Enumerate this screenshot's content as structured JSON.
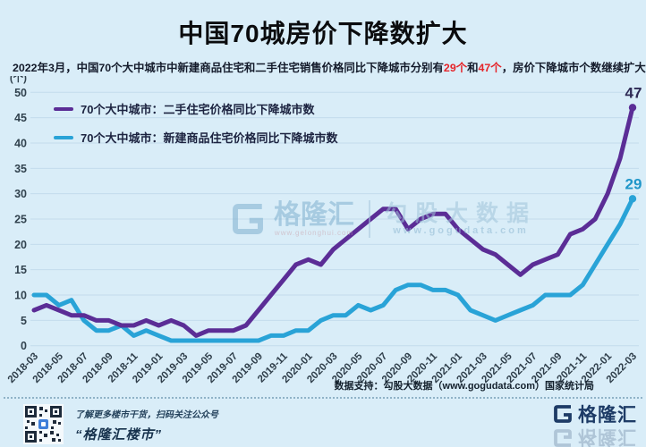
{
  "title": "中国70城房价下降数扩大",
  "subtitle": {
    "part1": "2022年3月，中国70个大中城市中新建商品住宅和二手住宅销售价格同比下降城市分别有",
    "highlight1": "29个",
    "part2": "和",
    "highlight2": "47个",
    "part3": "，房价下降城市个数继续扩大。"
  },
  "colors": {
    "background": "#d9edf8",
    "grid": "#c3dcec",
    "axis_text": "#31424e",
    "secondhand_line": "#5b2d96",
    "newhome_line": "#29a3d7",
    "highlight_red": "#e5252a",
    "brand_navy": "#1d3b66"
  },
  "chart_data": {
    "type": "line",
    "title": "中国70城房价下降数扩大",
    "unit_label": "(个)",
    "xlabel": "",
    "ylabel": "(个)",
    "ylim": [
      0,
      50
    ],
    "y_ticks": [
      0,
      5,
      10,
      15,
      20,
      25,
      30,
      35,
      40,
      45,
      50
    ],
    "grid": true,
    "legend_position": "top-left",
    "x": [
      "2018-03",
      "2018-04",
      "2018-05",
      "2018-06",
      "2018-07",
      "2018-08",
      "2018-09",
      "2018-10",
      "2018-11",
      "2018-12",
      "2019-01",
      "2019-02",
      "2019-03",
      "2019-04",
      "2019-05",
      "2019-06",
      "2019-07",
      "2019-08",
      "2019-09",
      "2019-10",
      "2019-11",
      "2019-12",
      "2020-01",
      "2020-02",
      "2020-03",
      "2020-04",
      "2020-05",
      "2020-06",
      "2020-07",
      "2020-08",
      "2020-09",
      "2020-10",
      "2020-11",
      "2020-12",
      "2021-01",
      "2021-02",
      "2021-03",
      "2021-04",
      "2021-05",
      "2021-06",
      "2021-07",
      "2021-08",
      "2021-09",
      "2021-10",
      "2021-11",
      "2021-12",
      "2022-01",
      "2022-02",
      "2022-03"
    ],
    "x_tick_labels": [
      "2018-03",
      "2018-05",
      "2018-07",
      "2018-09",
      "2018-11",
      "2019-01",
      "2019-03",
      "2019-05",
      "2019-07",
      "2019-09",
      "2019-11",
      "2020-01",
      "2020-03",
      "2020-05",
      "2020-07",
      "2020-09",
      "2020-11",
      "2021-01",
      "2021-03",
      "2021-05",
      "2021-07",
      "2021-09",
      "2021-11",
      "2022-01",
      "2022-03"
    ],
    "series": [
      {
        "name": "70个大中城市：新建商品住宅价格同比下降城市数",
        "color": "#29a3d7",
        "end_label": "29",
        "end_label_color": "#1f96c9",
        "values": [
          10,
          10,
          8,
          9,
          5,
          3,
          3,
          4,
          2,
          3,
          2,
          1,
          1,
          1,
          1,
          1,
          1,
          1,
          1,
          2,
          2,
          3,
          3,
          5,
          6,
          6,
          8,
          7,
          8,
          11,
          12,
          12,
          11,
          11,
          10,
          7,
          6,
          5,
          6,
          7,
          8,
          10,
          10,
          10,
          12,
          16,
          20,
          24,
          29
        ]
      },
      {
        "name": "70个大中城市：二手住宅价格同比下降城市数",
        "color": "#5b2d96",
        "end_label": "47",
        "end_label_color": "#2e2a55",
        "values": [
          7,
          8,
          7,
          6,
          6,
          5,
          5,
          4,
          4,
          5,
          4,
          5,
          4,
          2,
          3,
          3,
          3,
          4,
          7,
          10,
          13,
          16,
          17,
          16,
          19,
          21,
          23,
          25,
          27,
          27,
          23,
          25,
          26,
          26,
          23,
          21,
          19,
          18,
          16,
          14,
          16,
          17,
          18,
          22,
          23,
          25,
          30,
          37,
          47
        ]
      }
    ]
  },
  "legend": {
    "secondhand_label": "70个大中城市：二手住宅价格同比下降城市数",
    "newhome_label": "70个大中城市：新建商品住宅价格同比下降城市数"
  },
  "watermark": {
    "brand": "格隆汇",
    "brand_url": "www.gelonghui.com",
    "partner": "勾股大数据",
    "partner_url": "www.gogudata.com"
  },
  "footer": {
    "source": "数据支持：勾股大数据（www.gogudata.com）国家统计局",
    "qr_caption_line1": "了解更多楼市干货，扫码关注公众号",
    "qr_caption_line2": "“格隆汇楼市”",
    "logo_text": "格隆汇"
  }
}
